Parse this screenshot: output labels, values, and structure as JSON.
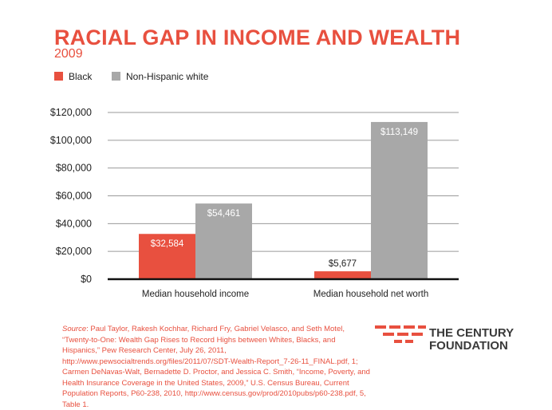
{
  "title": "RACIAL GAP IN INCOME AND WEALTH",
  "subtitle": "2009",
  "colors": {
    "black": "#e8503f",
    "white": "#a8a8a8",
    "accent": "#e8503f"
  },
  "legend": [
    {
      "label": "Black",
      "color": "#e8503f"
    },
    {
      "label": "Non-Hispanic white",
      "color": "#a8a8a8"
    }
  ],
  "chart_data": {
    "type": "bar",
    "title": "RACIAL GAP IN INCOME AND WEALTH",
    "subtitle": "2009",
    "categories": [
      "Median household income",
      "Median household net worth"
    ],
    "series": [
      {
        "name": "Black",
        "values": [
          32584,
          5677
        ],
        "labels": [
          "$32,584",
          "$5,677"
        ]
      },
      {
        "name": "Non-Hispanic white",
        "values": [
          54461,
          113149
        ],
        "labels": [
          "$54,461",
          "$113,149"
        ]
      }
    ],
    "ylim": [
      0,
      120000
    ],
    "yticks": [
      0,
      20000,
      40000,
      60000,
      80000,
      100000,
      120000
    ],
    "ytick_labels": [
      "$0",
      "$20,000",
      "$40,000",
      "$60,000",
      "$80,000",
      "$100,000",
      "$120,000"
    ],
    "xlabel": "",
    "ylabel": "",
    "grid": true,
    "legend_position": "top-left"
  },
  "source": {
    "label": "Source",
    "text": ": Paul Taylor, Rakesh Kochhar, Richard Fry, Gabriel Velasco, and Seth Motel, “Twenty-to-One: Wealth Gap Rises to Record Highs between Whites, Blacks, and Hispanics,” Pew Research Center, July 26, 2011, http://www.pewsocialtrends.org/files/2011/07/SDT-Wealth-Report_7-26-11_FINAL.pdf, 1; Carmen DeNavas-Walt, Bernadette D. Proctor, and Jessica C. Smith, “Income, Poverty, and Health Insurance Coverage in the United States, 2009,” U.S. Census Bureau, Current Population Reports, P60-238, 2010, http://www.census.gov/prod/2010pubs/p60-238.pdf, 5, Table 1."
  },
  "logo": {
    "line1": "THE CENTURY",
    "line2": "FOUNDATION"
  }
}
